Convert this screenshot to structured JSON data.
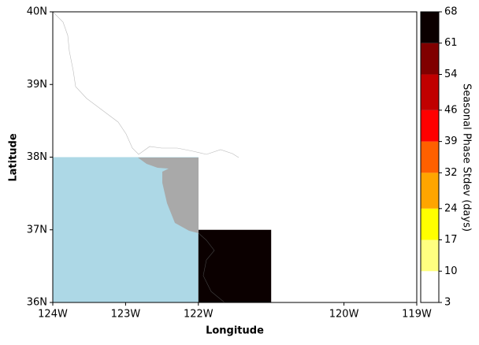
{
  "chart_data": {
    "type": "gridmap",
    "xlabel": "Longitude",
    "ylabel": "Latitude",
    "xlim": [
      -124,
      -119
    ],
    "ylim": [
      36,
      40
    ],
    "xticks": [
      {
        "value": -124,
        "label": "124W"
      },
      {
        "value": -123,
        "label": "123W"
      },
      {
        "value": -122,
        "label": "122W"
      },
      {
        "value": -120,
        "label": "120W"
      },
      {
        "value": -119,
        "label": "119W"
      }
    ],
    "yticks": [
      {
        "value": 36,
        "label": "36N"
      },
      {
        "value": 37,
        "label": "37N"
      },
      {
        "value": 38,
        "label": "38N"
      },
      {
        "value": 39,
        "label": "39N"
      },
      {
        "value": 40,
        "label": "40N"
      }
    ],
    "cells": [
      {
        "lon": [
          -124,
          -122
        ],
        "lat": [
          36,
          38
        ],
        "color": "#add8e6"
      },
      {
        "lon": [
          -122,
          -121
        ],
        "lat": [
          36,
          37
        ],
        "value": 65
      }
    ],
    "colorbar": {
      "label": "Seasonal Phase Stdev (days)",
      "boundaries": [
        3,
        10,
        17,
        24,
        32,
        39,
        46,
        54,
        61,
        68
      ],
      "colors": [
        "#ffffff",
        "#ffff80",
        "#ffff00",
        "#ffa500",
        "#ff6000",
        "#ff0000",
        "#c00000",
        "#800000",
        "#0b0000"
      ]
    }
  }
}
